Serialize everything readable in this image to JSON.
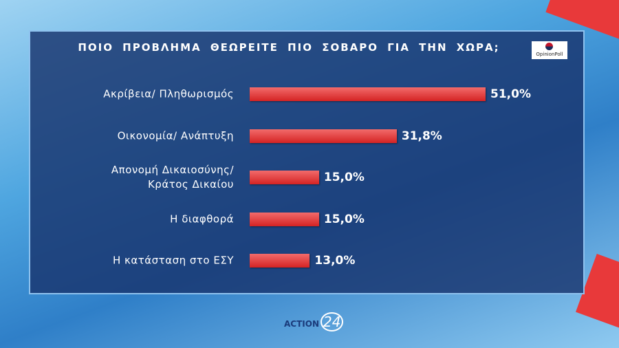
{
  "chart_data": {
    "type": "hbar",
    "title": "ΠΟΙΟ ΠΡΟΒΛΗΜΑ ΘΕΩΡΕΙΤΕ ΠΙΟ ΣΟΒΑΡΟ ΓΙΑ ΤΗΝ ΧΩΡΑ;",
    "categories": [
      "Ακρίβεια/ Πληθωρισμός",
      "Οικονομία/ Ανάπτυξη",
      "Απονομή Δικαιοσύνης/\nΚράτος Δικαίου",
      "Η διαφθορά",
      "Η κατάσταση στο ΕΣΥ"
    ],
    "values": [
      51.0,
      31.8,
      15.0,
      15.0,
      13.0
    ],
    "value_labels": [
      "51,0%",
      "31,8%",
      "15,0%",
      "15,0%",
      "13,0%"
    ],
    "color": "#e8393a"
  },
  "branding": {
    "source": "OpinionPoll",
    "channel": "ACTION",
    "channel_number": "24"
  }
}
